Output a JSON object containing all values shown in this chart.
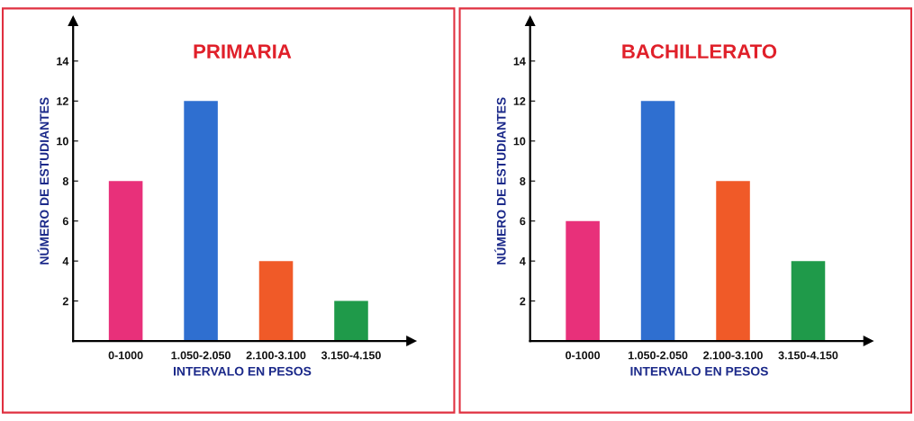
{
  "chart_data": [
    {
      "type": "bar",
      "title": "PRIMARIA",
      "xlabel": "INTERVALO EN PESOS",
      "ylabel": "NÚMERO DE ESTUDIANTES",
      "categories": [
        "0-1000",
        "1.050-2.050",
        "2.100-3.100",
        "3.150-4.150"
      ],
      "values": [
        8,
        12,
        4,
        2
      ],
      "colors": [
        "#e8307a",
        "#2f6fd0",
        "#f05a28",
        "#1f9a4a"
      ],
      "ylim": [
        0,
        16
      ],
      "yticks": [
        2,
        4,
        6,
        8,
        10,
        12,
        14
      ],
      "grid": false,
      "legend": false
    },
    {
      "type": "bar",
      "title": "BACHILLERATO",
      "xlabel": "INTERVALO EN PESOS",
      "ylabel": "NÚMERO DE ESTUDIANTES",
      "categories": [
        "0-1000",
        "1.050-2.050",
        "2.100-3.100",
        "3.150-4.150"
      ],
      "values": [
        6,
        12,
        8,
        4
      ],
      "colors": [
        "#e8307a",
        "#2f6fd0",
        "#f05a28",
        "#1f9a4a"
      ],
      "ylim": [
        0,
        16
      ],
      "yticks": [
        2,
        4,
        6,
        8,
        10,
        12,
        14
      ],
      "grid": false,
      "legend": false
    }
  ]
}
